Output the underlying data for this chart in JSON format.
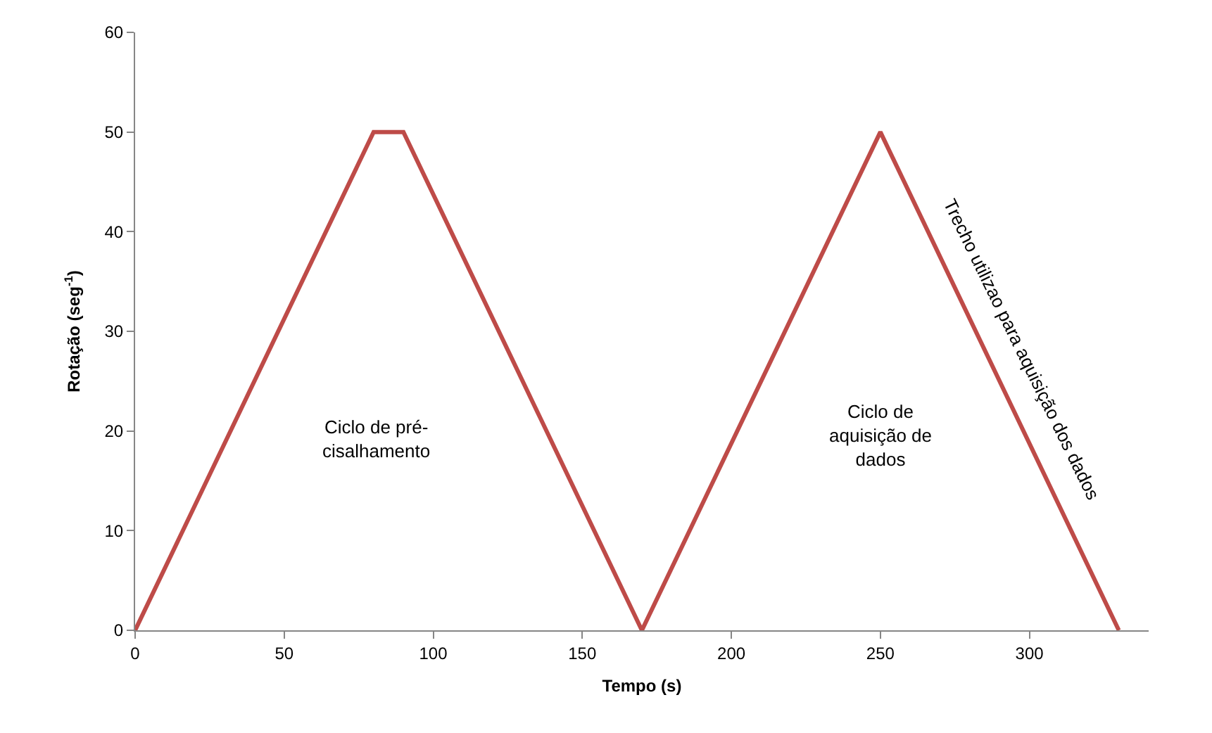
{
  "chart_data": {
    "type": "line",
    "xlabel": "Tempo (s)",
    "ylabel": "Rotação (seg$^{-1}$)",
    "x": [
      0,
      80,
      90,
      170,
      250,
      330
    ],
    "series": [
      {
        "color": "#be4b48",
        "values": [
          0,
          50,
          50,
          0,
          50,
          0
        ]
      }
    ],
    "xlim": [
      0,
      340
    ],
    "xticks": [
      0,
      50,
      100,
      150,
      200,
      250,
      300
    ],
    "ylim": [
      0,
      60
    ],
    "yticks": [
      0,
      10,
      20,
      30,
      40,
      50,
      60
    ],
    "grid": false,
    "marker": "none",
    "line_style": "solid",
    "annotations": [
      "Ciclo de pré-\ncisalhamento",
      "Ciclo de\naquisição de\ndados",
      "Trecho utilizao para aquisição dos dados"
    ]
  }
}
